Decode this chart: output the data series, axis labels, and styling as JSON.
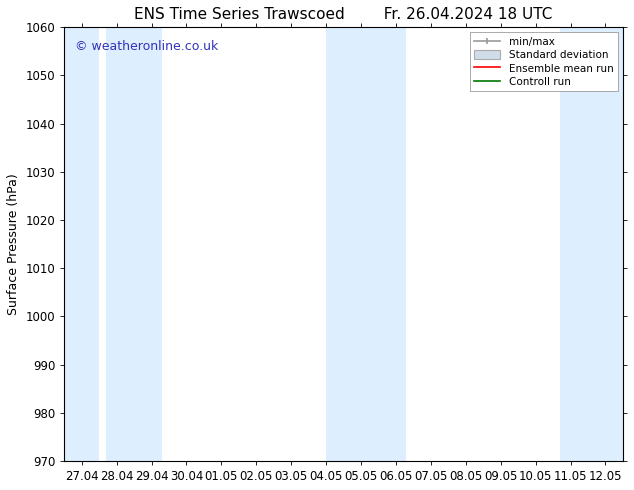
{
  "title_left": "ENS Time Series Trawscoed",
  "title_right": "Fr. 26.04.2024 18 UTC",
  "ylabel": "Surface Pressure (hPa)",
  "ylim": [
    970,
    1060
  ],
  "yticks": [
    970,
    980,
    990,
    1000,
    1010,
    1020,
    1030,
    1040,
    1050,
    1060
  ],
  "xtick_labels": [
    "27.04",
    "28.04",
    "29.04",
    "30.04",
    "01.05",
    "02.05",
    "03.05",
    "04.05",
    "05.05",
    "06.05",
    "07.05",
    "08.05",
    "09.05",
    "10.05",
    "11.05",
    "12.05"
  ],
  "watermark": "© weatheronline.co.uk",
  "watermark_color": "#3333bb",
  "bg_color": "#ffffff",
  "plot_bg_color": "#ffffff",
  "shaded_band_color": "#ddeeff",
  "shaded_ranges": [
    [
      0,
      2
    ],
    [
      4,
      6
    ],
    [
      11,
      12
    ]
  ],
  "legend_entries": [
    "min/max",
    "Standard deviation",
    "Ensemble mean run",
    "Controll run"
  ],
  "legend_colors_line": [
    "#999999",
    "#aaaaaa",
    "#ff0000",
    "#007700"
  ],
  "title_fontsize": 11,
  "tick_fontsize": 8.5,
  "label_fontsize": 9,
  "watermark_fontsize": 9
}
